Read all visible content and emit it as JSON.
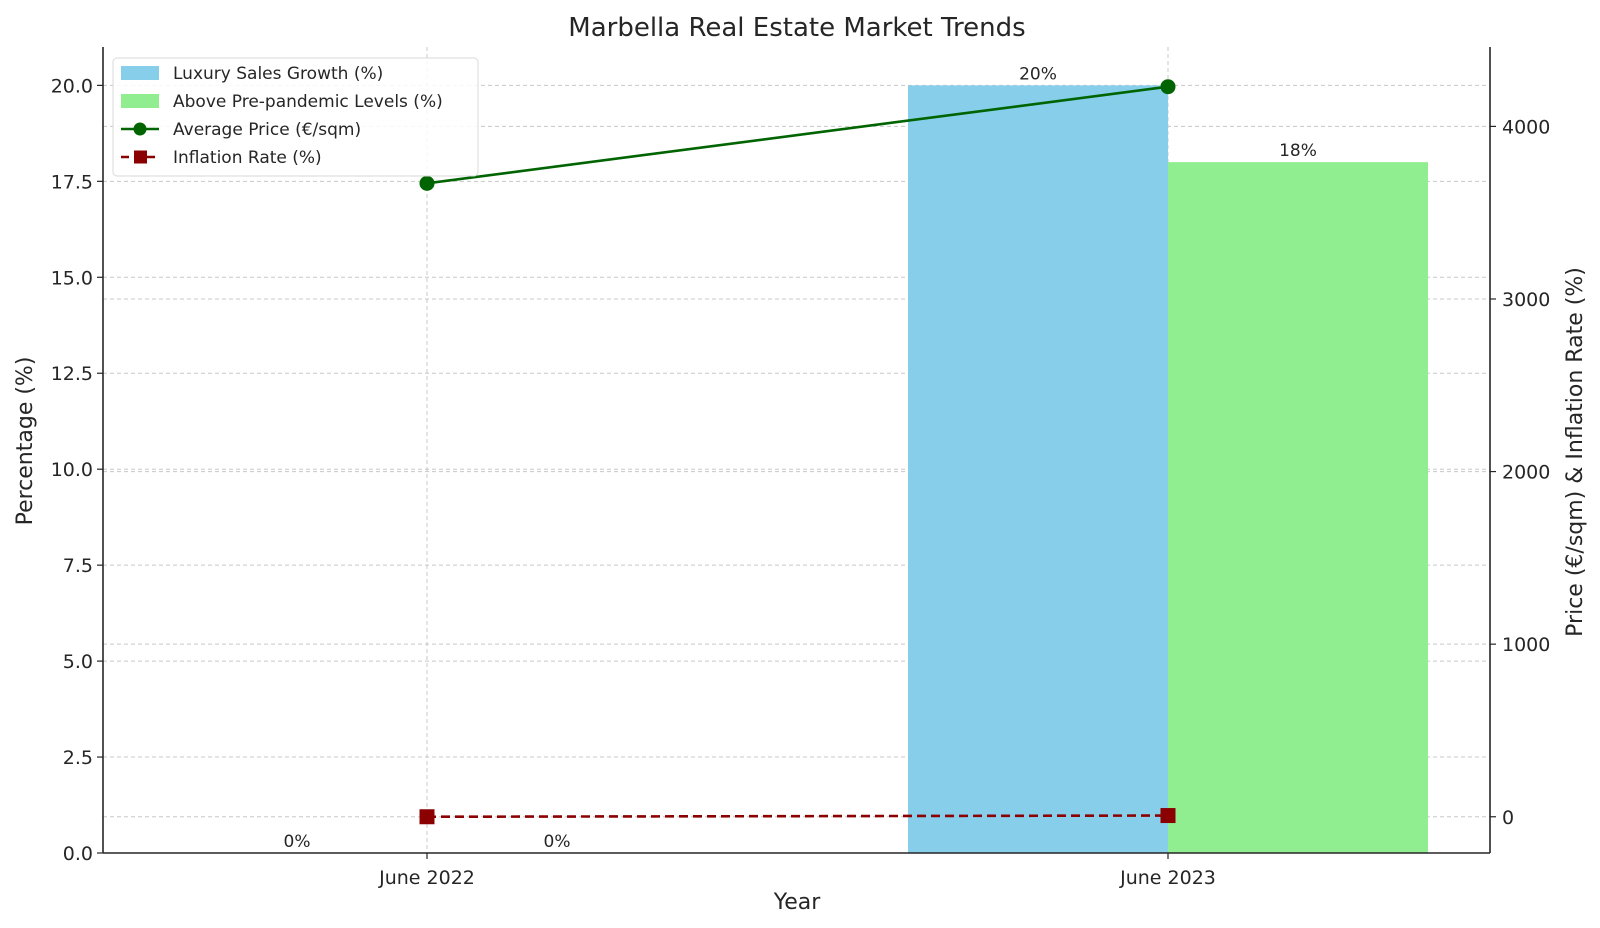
{
  "chart_data": {
    "type": "bar",
    "title": "Marbella Real Estate Market Trends",
    "xlabel": "Year",
    "ylabel": "Percentage (%)",
    "y2label": "Price (€/sqm) & Inflation Rate (%)",
    "categories": [
      "June 2022",
      "June 2023"
    ],
    "ylim": [
      0,
      21
    ],
    "yticks": [
      "0.0",
      "2.5",
      "5.0",
      "7.5",
      "10.0",
      "12.5",
      "15.0",
      "17.5",
      "20.0"
    ],
    "y2lim": [
      -210,
      4460
    ],
    "y2ticks": [
      "0",
      "1000",
      "2000",
      "3000",
      "4000"
    ],
    "grid": true,
    "legend_position": "top-left",
    "bar_series": [
      {
        "name": "Luxury Sales Growth (%)",
        "color": "#87CEEB",
        "values": [
          0,
          20
        ],
        "labels": [
          "0%",
          "20%"
        ]
      },
      {
        "name": "Above Pre-pandemic Levels (%)",
        "color": "#90EE90",
        "values": [
          0,
          18
        ],
        "labels": [
          "0%",
          "18%"
        ]
      }
    ],
    "line_series": [
      {
        "name": "Average Price (€/sqm)",
        "color": "#006400",
        "marker": "circle",
        "linestyle": "solid",
        "axis": "right",
        "values": [
          3670,
          4230
        ]
      },
      {
        "name": "Inflation Rate (%)",
        "color": "#8B0000",
        "marker": "square",
        "linestyle": "dashed",
        "axis": "right",
        "values": [
          0,
          7
        ]
      }
    ]
  }
}
